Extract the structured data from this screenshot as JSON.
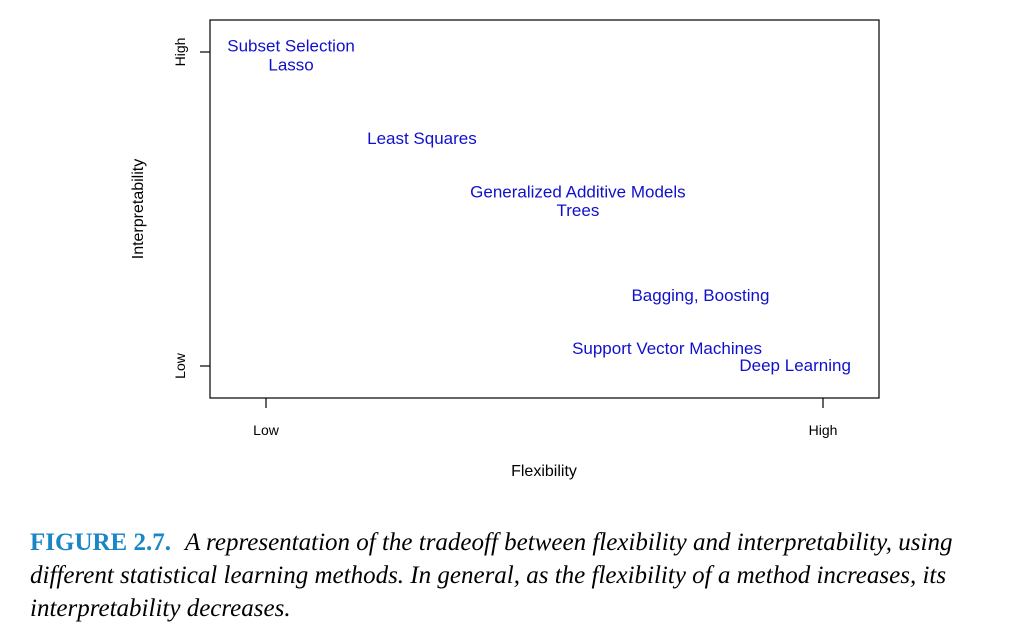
{
  "chart_data": {
    "type": "scatter",
    "title": "",
    "xlabel": "Flexibility",
    "ylabel": "Interpretability",
    "xlim": [
      0,
      1
    ],
    "ylim": [
      0,
      1
    ],
    "x_ticks": [
      {
        "value": 0,
        "label": "Low"
      },
      {
        "value": 1,
        "label": "High"
      }
    ],
    "y_ticks": [
      {
        "value": 0,
        "label": "Low"
      },
      {
        "value": 1,
        "label": "High"
      }
    ],
    "grid": false,
    "color": "#1010cc",
    "points": [
      {
        "label": "Subset Selection",
        "x": 0.045,
        "y": 1.02
      },
      {
        "label": "Lasso",
        "x": 0.045,
        "y": 0.96
      },
      {
        "label": "Least Squares",
        "x": 0.28,
        "y": 0.726
      },
      {
        "label": "Generalized Additive Models",
        "x": 0.56,
        "y": 0.555
      },
      {
        "label": "Trees",
        "x": 0.56,
        "y": 0.497
      },
      {
        "label": "Bagging, Boosting",
        "x": 0.78,
        "y": 0.226
      },
      {
        "label": "Support Vector Machines",
        "x": 0.72,
        "y": 0.058
      },
      {
        "label": "Deep Learning",
        "x": 0.95,
        "y": 0.003
      }
    ]
  },
  "caption": {
    "label": "FIGURE 2.7.",
    "text": "A representation of the tradeoff between flexibility and interpretability, using different statistical learning methods. In general, as the flexibility of a method increases, its interpretability decreases."
  }
}
